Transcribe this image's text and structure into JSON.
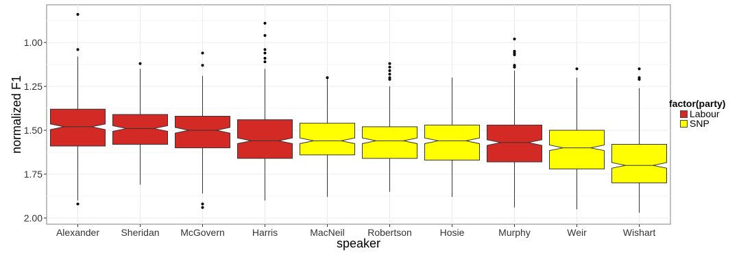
{
  "chart_data": {
    "type": "boxplot",
    "notched": true,
    "xlabel": "speaker",
    "ylabel": "normalized F1",
    "y_reversed": true,
    "ylim": [
      0.79,
      2.02
    ],
    "yticks": [
      "1.00",
      "1.25",
      "1.50",
      "1.75",
      "2.00"
    ],
    "ytick_values": [
      1.0,
      1.25,
      1.5,
      1.75,
      2.0
    ],
    "grid": true,
    "legend": {
      "title": "factor(party)",
      "position": "right",
      "entries": [
        {
          "label": "Labour",
          "color": "#d42a26"
        },
        {
          "label": "SNP",
          "color": "#ffff00"
        }
      ]
    },
    "categories": [
      "Alexander",
      "Sheridan",
      "McGovern",
      "Harris",
      "MacNeil",
      "Robertson",
      "Hosie",
      "Murphy",
      "Weir",
      "Wishart"
    ],
    "boxes": [
      {
        "speaker": "Alexander",
        "party": "Labour",
        "q1": 1.38,
        "median": 1.48,
        "q3": 1.59,
        "whisker_low": 1.08,
        "whisker_high": 1.9,
        "notch": 0.016,
        "outliers": [
          0.84,
          1.04,
          1.92
        ]
      },
      {
        "speaker": "Sheridan",
        "party": "Labour",
        "q1": 1.41,
        "median": 1.49,
        "q3": 1.58,
        "whisker_low": 1.15,
        "whisker_high": 1.81,
        "notch": 0.016,
        "outliers": [
          1.12
        ]
      },
      {
        "speaker": "McGovern",
        "party": "Labour",
        "q1": 1.42,
        "median": 1.5,
        "q3": 1.6,
        "whisker_low": 1.19,
        "whisker_high": 1.86,
        "notch": 0.016,
        "outliers": [
          1.06,
          1.13,
          1.92,
          1.94
        ]
      },
      {
        "speaker": "Harris",
        "party": "Labour",
        "q1": 1.44,
        "median": 1.56,
        "q3": 1.66,
        "whisker_low": 1.15,
        "whisker_high": 1.9,
        "notch": 0.016,
        "outliers": [
          0.89,
          0.96,
          1.04,
          1.06,
          1.09,
          1.11
        ]
      },
      {
        "speaker": "MacNeil",
        "party": "SNP",
        "q1": 1.46,
        "median": 1.56,
        "q3": 1.64,
        "whisker_low": 1.2,
        "whisker_high": 1.88,
        "notch": 0.016,
        "outliers": [
          1.2
        ]
      },
      {
        "speaker": "Robertson",
        "party": "SNP",
        "q1": 1.48,
        "median": 1.56,
        "q3": 1.66,
        "whisker_low": 1.25,
        "whisker_high": 1.85,
        "notch": 0.016,
        "outliers": [
          1.12,
          1.14,
          1.16,
          1.18,
          1.2,
          1.21
        ]
      },
      {
        "speaker": "Hosie",
        "party": "SNP",
        "q1": 1.47,
        "median": 1.56,
        "q3": 1.67,
        "whisker_low": 1.2,
        "whisker_high": 1.88,
        "notch": 0.016,
        "outliers": []
      },
      {
        "speaker": "Murphy",
        "party": "Labour",
        "q1": 1.47,
        "median": 1.57,
        "q3": 1.68,
        "whisker_low": 1.16,
        "whisker_high": 1.94,
        "notch": 0.016,
        "outliers": [
          0.98,
          1.05,
          1.06,
          1.07,
          1.13,
          1.14
        ]
      },
      {
        "speaker": "Weir",
        "party": "SNP",
        "q1": 1.5,
        "median": 1.6,
        "q3": 1.72,
        "whisker_low": 1.2,
        "whisker_high": 1.95,
        "notch": 0.016,
        "outliers": [
          1.15
        ]
      },
      {
        "speaker": "Wishart",
        "party": "SNP",
        "q1": 1.58,
        "median": 1.7,
        "q3": 1.8,
        "whisker_low": 1.26,
        "whisker_high": 1.97,
        "notch": 0.016,
        "outliers": [
          1.15,
          1.2,
          1.21
        ]
      }
    ]
  }
}
